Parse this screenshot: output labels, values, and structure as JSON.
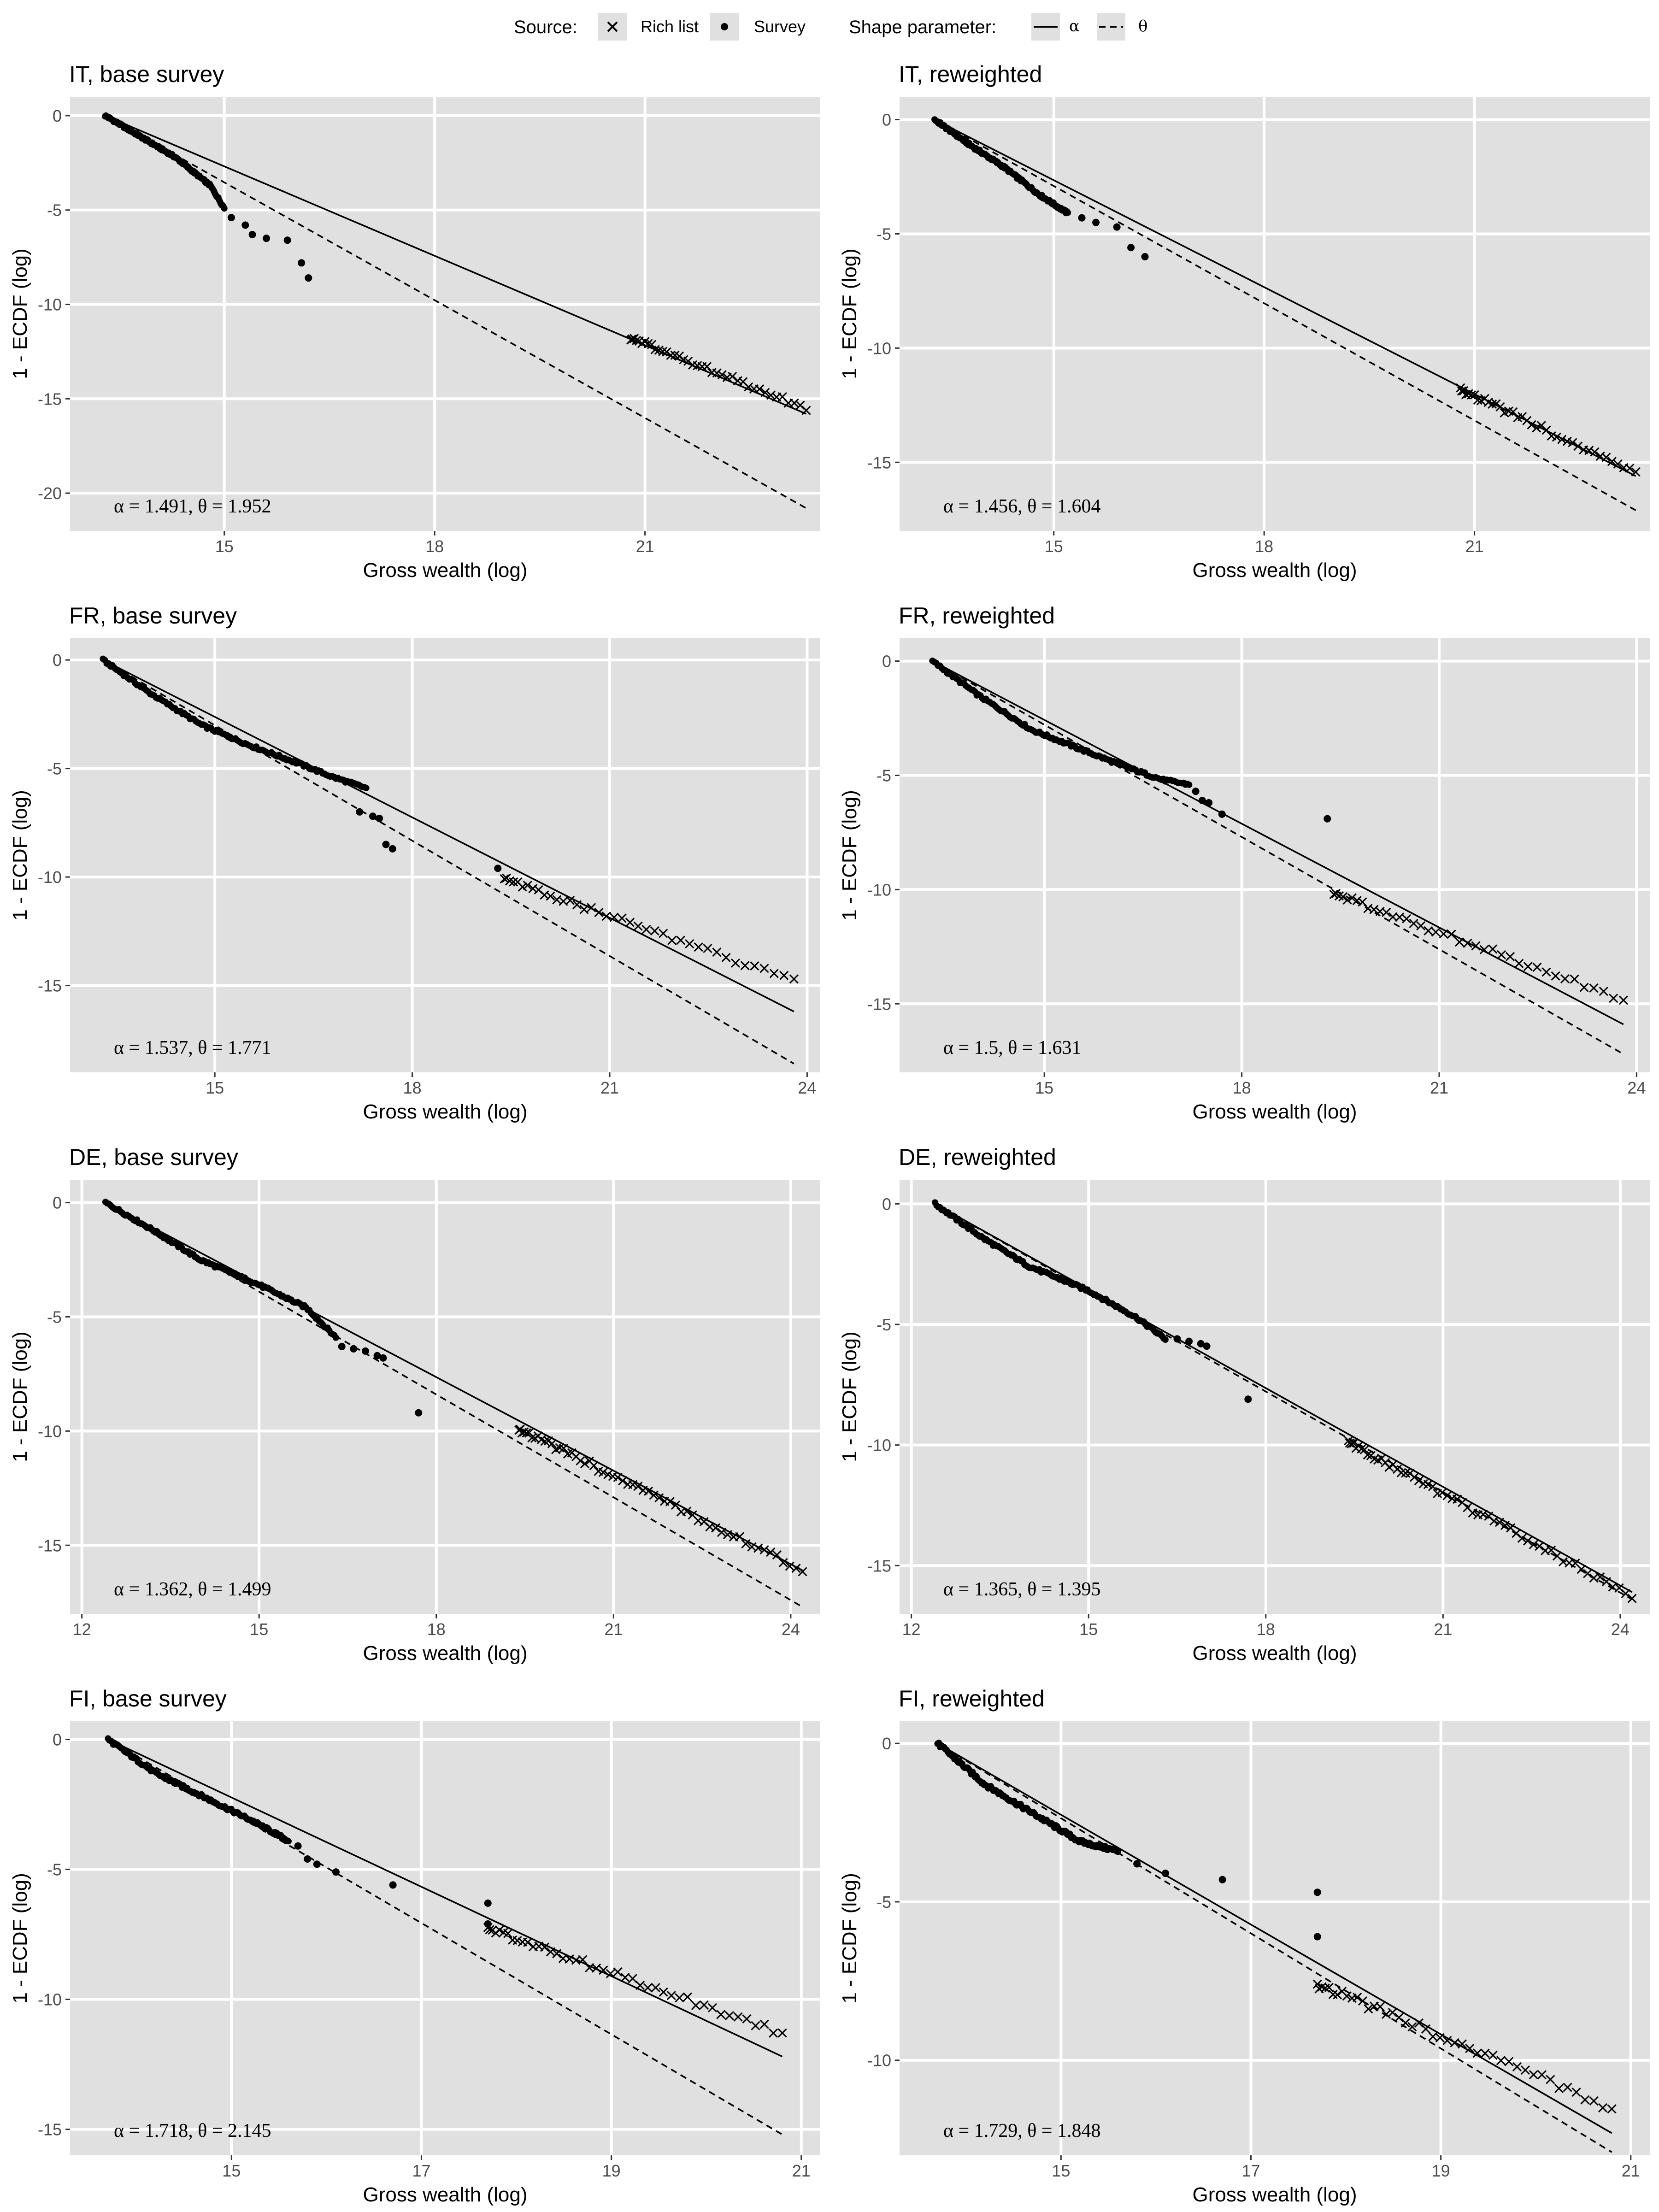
{
  "legend": {
    "source_title": "Source:",
    "source_items": [
      {
        "shape": "cross",
        "label": "Rich list"
      },
      {
        "shape": "dot",
        "label": "Survey"
      }
    ],
    "shape_title": "Shape parameter:",
    "shape_items": [
      {
        "linetype": "solid",
        "label": "α"
      },
      {
        "linetype": "dashed",
        "label": "θ"
      }
    ]
  },
  "colors": {
    "panel_bg": "#e0e0e0",
    "grid": "#ffffff",
    "ink": "#000000",
    "tick_text": "#4d4d4d"
  },
  "chart_data": [
    {
      "type": "scatter",
      "title": "IT, base survey",
      "xlabel": "Gross wealth (log)",
      "ylabel": "1 - ECDF (log)",
      "xlim": [
        12.8,
        23.5
      ],
      "ylim": [
        -22.0,
        1.0
      ],
      "xticks": [
        15,
        18,
        21
      ],
      "yticks": [
        0,
        -5,
        -10,
        -15,
        -20
      ],
      "annotation": "α = 1.491, θ = 1.952",
      "alpha_line": {
        "x": [
          13.3,
          23.3
        ],
        "y": [
          0,
          -15.8
        ]
      },
      "theta_line": {
        "x": [
          13.3,
          23.3
        ],
        "y": [
          0,
          -20.8
        ]
      },
      "survey_curve": {
        "x": [
          13.3,
          13.8,
          14.3,
          14.8,
          15.0
        ],
        "y": [
          0,
          -1.1,
          -2.2,
          -3.7,
          -4.9
        ]
      },
      "survey_points": {
        "x": [
          15.1,
          15.3,
          15.4,
          15.6,
          15.9,
          16.1,
          16.2
        ],
        "y": [
          -5.4,
          -5.8,
          -6.3,
          -6.5,
          -6.6,
          -7.8,
          -8.6
        ]
      },
      "rich_list": {
        "range": [
          20.8,
          23.3
        ],
        "y": [
          -11.8,
          -15.5
        ],
        "n": 40
      }
    },
    {
      "type": "scatter",
      "title": "IT, reweighted",
      "xlabel": "Gross wealth (log)",
      "ylabel": "1 - ECDF (log)",
      "xlim": [
        12.8,
        23.5
      ],
      "ylim": [
        -18.0,
        1.0
      ],
      "xticks": [
        15,
        18,
        21
      ],
      "yticks": [
        0,
        -5,
        -10,
        -15
      ],
      "annotation": "α = 1.456, θ = 1.604",
      "alpha_line": {
        "x": [
          13.3,
          23.3
        ],
        "y": [
          0,
          -15.6
        ]
      },
      "theta_line": {
        "x": [
          13.3,
          23.3
        ],
        "y": [
          0,
          -17.1
        ]
      },
      "survey_curve": {
        "x": [
          13.3,
          13.8,
          14.3,
          14.8,
          15.2
        ],
        "y": [
          0,
          -1.1,
          -2.1,
          -3.3,
          -4.1
        ]
      },
      "survey_points": {
        "x": [
          15.4,
          15.6,
          15.9,
          16.1,
          16.3
        ],
        "y": [
          -4.3,
          -4.5,
          -4.7,
          -5.6,
          -6.0
        ]
      },
      "rich_list": {
        "range": [
          20.8,
          23.3
        ],
        "y": [
          -11.8,
          -15.5
        ],
        "n": 40
      }
    },
    {
      "type": "scatter",
      "title": "FR, base survey",
      "xlabel": "Gross wealth (log)",
      "ylabel": "1 - ECDF (log)",
      "xlim": [
        12.8,
        24.2
      ],
      "ylim": [
        -19.0,
        1.0
      ],
      "xticks": [
        15,
        18,
        21,
        24
      ],
      "yticks": [
        0,
        -5,
        -10,
        -15
      ],
      "annotation": "α = 1.537, θ = 1.771",
      "alpha_line": {
        "x": [
          13.3,
          23.8
        ],
        "y": [
          0,
          -16.2
        ]
      },
      "theta_line": {
        "x": [
          13.3,
          23.8
        ],
        "y": [
          0,
          -18.6
        ]
      },
      "survey_curve": {
        "x": [
          13.3,
          14.0,
          14.8,
          15.5,
          16.3,
          16.8,
          17.3
        ],
        "y": [
          0,
          -1.5,
          -3.0,
          -3.9,
          -4.8,
          -5.4,
          -5.9
        ]
      },
      "survey_points": {
        "x": [
          17.2,
          17.4,
          17.5,
          17.6,
          17.7,
          19.3
        ],
        "y": [
          -7.0,
          -7.2,
          -7.3,
          -8.5,
          -8.7,
          -9.6
        ]
      },
      "rich_list": {
        "range": [
          19.4,
          23.8
        ],
        "y": [
          -10.1,
          -14.8
        ],
        "n": 40
      }
    },
    {
      "type": "scatter",
      "title": "FR, reweighted",
      "xlabel": "Gross wealth (log)",
      "ylabel": "1 - ECDF (log)",
      "xlim": [
        12.8,
        24.2
      ],
      "ylim": [
        -18.0,
        1.0
      ],
      "xticks": [
        15,
        18,
        21,
        24
      ],
      "yticks": [
        0,
        -5,
        -10,
        -15
      ],
      "annotation": "α = 1.5, θ = 1.631",
      "alpha_line": {
        "x": [
          13.3,
          23.8
        ],
        "y": [
          0,
          -15.9
        ]
      },
      "theta_line": {
        "x": [
          13.3,
          23.8
        ],
        "y": [
          0,
          -17.2
        ]
      },
      "survey_curve": {
        "x": [
          13.3,
          14.0,
          14.8,
          15.5,
          16.3,
          16.8,
          17.2
        ],
        "y": [
          0,
          -1.5,
          -3.0,
          -3.8,
          -4.7,
          -5.2,
          -5.4
        ]
      },
      "survey_points": {
        "x": [
          17.3,
          17.4,
          17.5,
          17.7,
          19.3
        ],
        "y": [
          -5.7,
          -6.1,
          -6.2,
          -6.7,
          -6.9
        ]
      },
      "rich_list": {
        "range": [
          19.4,
          23.8
        ],
        "y": [
          -10.2,
          -14.8
        ],
        "n": 40
      }
    },
    {
      "type": "scatter",
      "title": "DE, base survey",
      "xlabel": "Gross wealth (log)",
      "ylabel": "1 - ECDF (log)",
      "xlim": [
        11.8,
        24.5
      ],
      "ylim": [
        -18.0,
        1.0
      ],
      "xticks": [
        12,
        15,
        18,
        21,
        24
      ],
      "yticks": [
        0,
        -5,
        -10,
        -15
      ],
      "annotation": "α = 1.362, θ = 1.499",
      "alpha_line": {
        "x": [
          12.4,
          24.2
        ],
        "y": [
          0,
          -16.1
        ]
      },
      "theta_line": {
        "x": [
          12.4,
          24.2
        ],
        "y": [
          0,
          -17.7
        ]
      },
      "survey_curve": {
        "x": [
          12.4,
          13.2,
          14.0,
          15.0,
          15.8,
          16.3
        ],
        "y": [
          0,
          -1.2,
          -2.5,
          -3.6,
          -4.6,
          -5.9
        ]
      },
      "survey_points": {
        "x": [
          16.4,
          16.6,
          16.8,
          17.0,
          17.1,
          17.7
        ],
        "y": [
          -6.3,
          -6.4,
          -6.5,
          -6.7,
          -6.8,
          -9.2
        ]
      },
      "rich_list": {
        "range": [
          19.4,
          24.2
        ],
        "y": [
          -9.9,
          -16.1
        ],
        "n": 60
      }
    },
    {
      "type": "scatter",
      "title": "DE, reweighted",
      "xlabel": "Gross wealth (log)",
      "ylabel": "1 - ECDF (log)",
      "xlim": [
        11.8,
        24.5
      ],
      "ylim": [
        -17.0,
        1.0
      ],
      "xticks": [
        12,
        15,
        18,
        21,
        24
      ],
      "yticks": [
        0,
        -5,
        -10,
        -15
      ],
      "annotation": "α = 1.365, θ = 1.395",
      "alpha_line": {
        "x": [
          12.4,
          24.2
        ],
        "y": [
          0,
          -16.1
        ]
      },
      "theta_line": {
        "x": [
          12.4,
          24.2
        ],
        "y": [
          0,
          -16.4
        ]
      },
      "survey_curve": {
        "x": [
          12.4,
          13.2,
          14.0,
          15.0,
          15.8,
          16.3
        ],
        "y": [
          0,
          -1.4,
          -2.6,
          -3.6,
          -4.7,
          -5.6
        ]
      },
      "survey_points": {
        "x": [
          16.5,
          16.7,
          16.9,
          17.0,
          17.7
        ],
        "y": [
          -5.6,
          -5.7,
          -5.8,
          -5.9,
          -8.1
        ]
      },
      "rich_list": {
        "range": [
          19.4,
          24.2
        ],
        "y": [
          -9.9,
          -16.3
        ],
        "n": 60
      }
    },
    {
      "type": "scatter",
      "title": "FI, base survey",
      "xlabel": "Gross wealth (log)",
      "ylabel": "1 - ECDF (log)",
      "xlim": [
        13.3,
        21.2
      ],
      "ylim": [
        -16.0,
        0.7
      ],
      "xticks": [
        15,
        17,
        19,
        21
      ],
      "yticks": [
        0,
        -5,
        -10,
        -15
      ],
      "annotation": "α = 1.718, θ = 2.145",
      "alpha_line": {
        "x": [
          13.7,
          20.8
        ],
        "y": [
          0,
          -12.2
        ]
      },
      "theta_line": {
        "x": [
          13.7,
          20.8
        ],
        "y": [
          0,
          -15.2
        ]
      },
      "survey_curve": {
        "x": [
          13.7,
          14.2,
          14.7,
          15.2,
          15.6
        ],
        "y": [
          0,
          -1.3,
          -2.2,
          -3.1,
          -3.9
        ]
      },
      "survey_points": {
        "x": [
          15.7,
          15.8,
          15.9,
          16.1,
          16.7,
          17.7,
          17.7
        ],
        "y": [
          -4.1,
          -4.6,
          -4.8,
          -5.1,
          -5.6,
          -6.3,
          -7.1
        ]
      },
      "rich_list": {
        "range": [
          17.7,
          20.8
        ],
        "y": [
          -7.3,
          -11.3
        ],
        "n": 45
      }
    },
    {
      "type": "scatter",
      "title": "FI, reweighted",
      "xlabel": "Gross wealth (log)",
      "ylabel": "1 - ECDF (log)",
      "xlim": [
        13.3,
        21.2
      ],
      "ylim": [
        -13.0,
        0.7
      ],
      "xticks": [
        15,
        17,
        19,
        21
      ],
      "yticks": [
        0,
        -5,
        -10
      ],
      "annotation": "α = 1.729, θ = 1.848",
      "alpha_line": {
        "x": [
          13.7,
          20.8
        ],
        "y": [
          0,
          -12.3
        ]
      },
      "theta_line": {
        "x": [
          13.7,
          20.8
        ],
        "y": [
          0,
          -12.9
        ]
      },
      "survey_curve": {
        "x": [
          13.7,
          14.2,
          14.7,
          15.2,
          15.6
        ],
        "y": [
          0,
          -1.3,
          -2.2,
          -3.1,
          -3.4
        ]
      },
      "survey_points": {
        "x": [
          15.8,
          16.1,
          16.7,
          17.7,
          17.7
        ],
        "y": [
          -3.8,
          -4.1,
          -4.3,
          -4.7,
          -6.1
        ]
      },
      "rich_list": {
        "range": [
          17.7,
          20.8
        ],
        "y": [
          -7.6,
          -11.5
        ],
        "n": 45
      }
    }
  ]
}
